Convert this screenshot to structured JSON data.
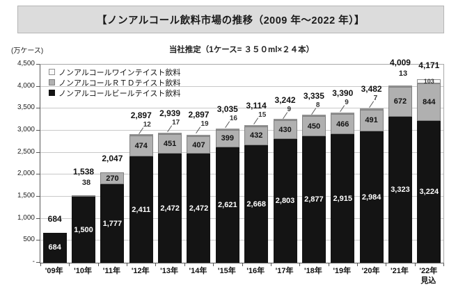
{
  "title": "【ノンアルコール飲料市場の推移（2009 年～2022 年）】",
  "subtitle": "当社推定（1ケース= ３５０ml×２４本）",
  "y_unit": "(万ケース)",
  "y_zero_label": "-",
  "colors": {
    "beer": "#141414",
    "rtd": "#b0b0b0",
    "wine": "#f8f8f8",
    "grid": "#c8c8c8",
    "title_bg": "#dcdcdc"
  },
  "chart_data": {
    "type": "bar",
    "stacked": true,
    "title": "【ノンアルコール飲料市場の推移（2009 年～2022 年）】",
    "subtitle": "当社推定（1ケース= ３５０ml×２４本）",
    "ylabel": "(万ケース)",
    "ylim": [
      0,
      4500
    ],
    "ytick_step": 500,
    "grid": true,
    "legend_position": "top-left-inside",
    "categories": [
      "'09年",
      "'10年",
      "'11年",
      "'12年",
      "'13年",
      "'14年",
      "'15年",
      "'16年",
      "'17年",
      "'18年",
      "'19年",
      "'20年",
      "'21年",
      "'22年\n見込"
    ],
    "series": [
      {
        "name": "ノンアルコールビールテイスト飲料",
        "color": "#141414",
        "border": "#141414",
        "text_color": "#ffffff",
        "values": [
          684,
          1500,
          1777,
          2411,
          2472,
          2472,
          2621,
          2668,
          2803,
          2877,
          2915,
          2984,
          3323,
          3224
        ],
        "label_modes": [
          "in",
          "in",
          "in",
          "in",
          "in",
          "in",
          "in",
          "in",
          "in",
          "in",
          "in",
          "in",
          "in",
          "in"
        ]
      },
      {
        "name": "ノンアルコールＲＴＤテイスト飲料",
        "color": "#b0b0b0",
        "border": "#808080",
        "text_color": "#111111",
        "values": [
          null,
          38,
          270,
          474,
          451,
          407,
          399,
          432,
          430,
          450,
          466,
          491,
          672,
          844
        ],
        "label_modes": [
          null,
          "above",
          "in",
          "in",
          "in",
          "in",
          "in",
          "in",
          "in",
          "in",
          "in",
          "in",
          "in",
          "in"
        ]
      },
      {
        "name": "ノンアルコールワインテイスト飲料",
        "color": "#f8f8f8",
        "border": "#909090",
        "text_color": "#333333",
        "values": [
          null,
          null,
          null,
          12,
          17,
          19,
          16,
          15,
          9,
          8,
          9,
          7,
          13,
          103
        ],
        "label_modes": [
          null,
          null,
          null,
          "line",
          "line",
          "line",
          "line",
          "line",
          "line",
          "line",
          "line",
          "line",
          "above",
          "in"
        ]
      }
    ],
    "totals": [
      684,
      1538,
      2047,
      2897,
      2939,
      2897,
      3035,
      3114,
      3242,
      3335,
      3390,
      3482,
      4009,
      4171
    ]
  }
}
